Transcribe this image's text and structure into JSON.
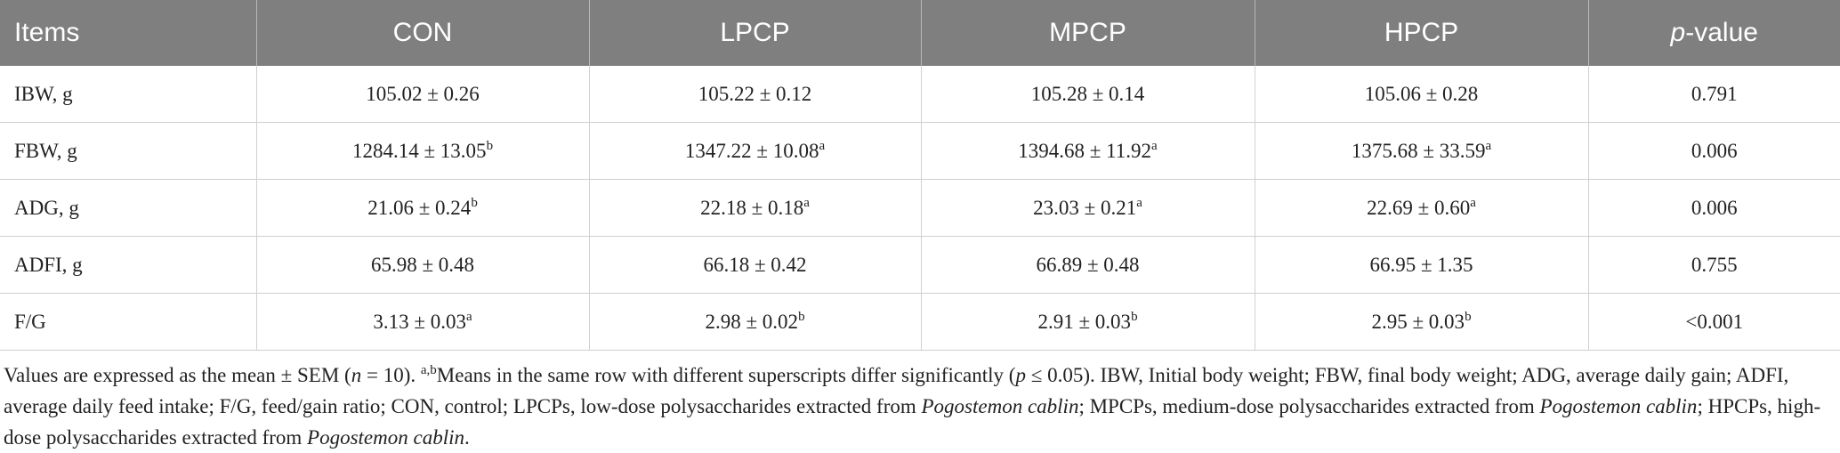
{
  "table": {
    "header": [
      [
        {
          "text": "Items"
        }
      ],
      [
        {
          "text": "CON"
        }
      ],
      [
        {
          "text": "LPCP"
        }
      ],
      [
        {
          "text": "MPCP"
        }
      ],
      [
        {
          "text": "HPCP"
        }
      ],
      [
        {
          "italic": "p"
        },
        {
          "text": "-value"
        }
      ]
    ],
    "rows": [
      [
        [
          {
            "text": "IBW, g"
          }
        ],
        [
          {
            "text": "105.02 ± 0.26"
          }
        ],
        [
          {
            "text": "105.22 ± 0.12"
          }
        ],
        [
          {
            "text": "105.28 ± 0.14"
          }
        ],
        [
          {
            "text": "105.06 ± 0.28"
          }
        ],
        [
          {
            "text": "0.791"
          }
        ]
      ],
      [
        [
          {
            "text": "FBW, g"
          }
        ],
        [
          {
            "text": "1284.14 ± 13.05"
          },
          {
            "sup": "b"
          }
        ],
        [
          {
            "text": "1347.22 ± 10.08"
          },
          {
            "sup": "a"
          }
        ],
        [
          {
            "text": "1394.68 ± 11.92"
          },
          {
            "sup": "a"
          }
        ],
        [
          {
            "text": "1375.68 ± 33.59"
          },
          {
            "sup": "a"
          }
        ],
        [
          {
            "text": "0.006"
          }
        ]
      ],
      [
        [
          {
            "text": "ADG, g"
          }
        ],
        [
          {
            "text": "21.06 ± 0.24"
          },
          {
            "sup": "b"
          }
        ],
        [
          {
            "text": "22.18 ± 0.18"
          },
          {
            "sup": "a"
          }
        ],
        [
          {
            "text": "23.03 ± 0.21"
          },
          {
            "sup": "a"
          }
        ],
        [
          {
            "text": "22.69 ± 0.60"
          },
          {
            "sup": "a"
          }
        ],
        [
          {
            "text": "0.006"
          }
        ]
      ],
      [
        [
          {
            "text": "ADFI, g"
          }
        ],
        [
          {
            "text": "65.98 ± 0.48"
          }
        ],
        [
          {
            "text": "66.18 ± 0.42"
          }
        ],
        [
          {
            "text": "66.89 ± 0.48"
          }
        ],
        [
          {
            "text": "66.95 ± 1.35"
          }
        ],
        [
          {
            "text": "0.755"
          }
        ]
      ],
      [
        [
          {
            "text": "F/G"
          }
        ],
        [
          {
            "text": "3.13 ± 0.03"
          },
          {
            "sup": "a"
          }
        ],
        [
          {
            "text": "2.98 ± 0.02"
          },
          {
            "sup": "b"
          }
        ],
        [
          {
            "text": "2.91 ± 0.03"
          },
          {
            "sup": "b"
          }
        ],
        [
          {
            "text": "2.95 ± 0.03"
          },
          {
            "sup": "b"
          }
        ],
        [
          {
            "text": "<0.001"
          }
        ]
      ]
    ]
  },
  "footnote": [
    {
      "text": "Values are expressed as the mean ± SEM ("
    },
    {
      "italic": "n"
    },
    {
      "text": " = 10). "
    },
    {
      "sup": "a,b"
    },
    {
      "text": "Means in the same row with different superscripts differ significantly ("
    },
    {
      "italic": "p"
    },
    {
      "text": " ≤ 0.05). IBW, Initial body weight; FBW, final body weight; ADG, average daily gain; ADFI, average daily feed intake; F/G, feed/gain ratio; CON, control; LPCPs, low-dose polysaccharides extracted from "
    },
    {
      "italic": "Pogostemon cablin"
    },
    {
      "text": "; MPCPs, medium-dose polysaccharides extracted from "
    },
    {
      "italic": "Pogostemon cablin"
    },
    {
      "text": "; HPCPs, high-dose polysaccharides extracted from "
    },
    {
      "italic": "Pogostemon cablin"
    },
    {
      "text": "."
    }
  ]
}
